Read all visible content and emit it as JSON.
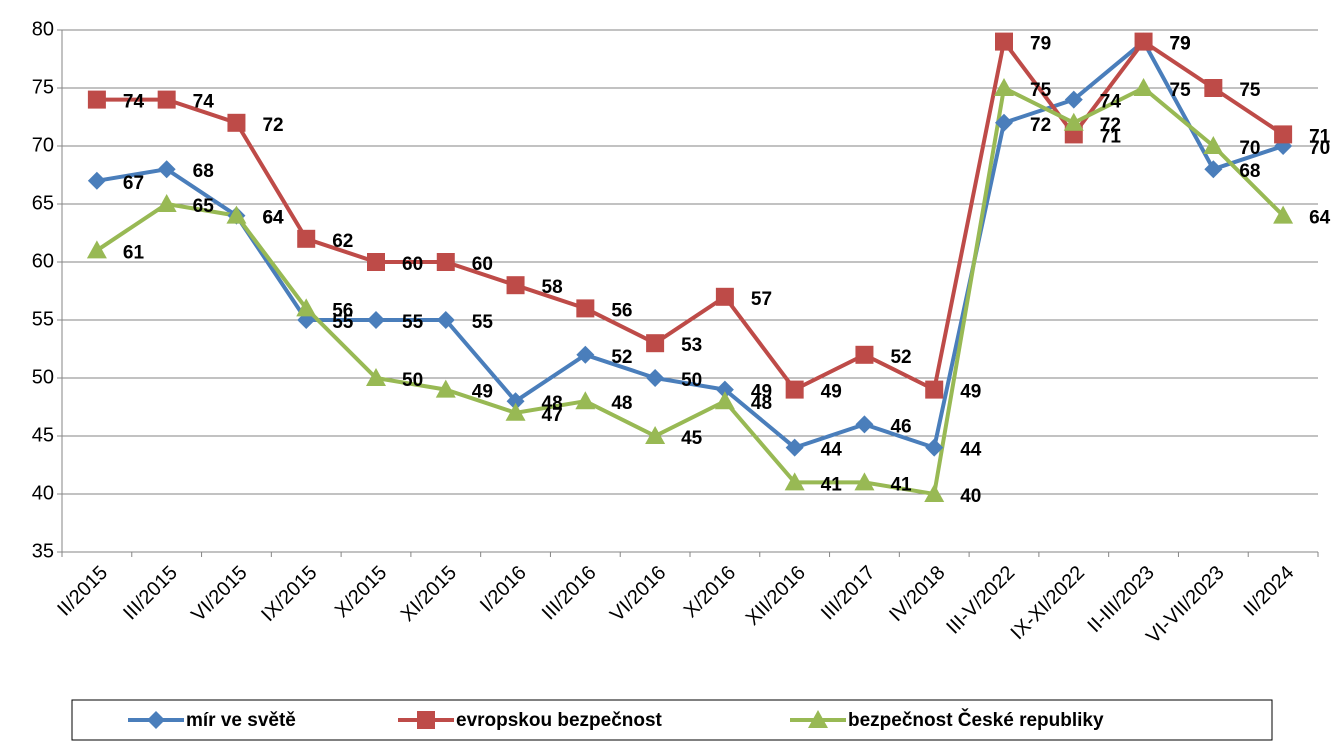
{
  "chart_data": {
    "type": "line",
    "categories": [
      "II/2015",
      "III/2015",
      "VI/2015",
      "IX/2015",
      "X/2015",
      "XI/2015",
      "I/2016",
      "III/2016",
      "VI/2016",
      "X/2016",
      "XII/2016",
      "III/2017",
      "IV/2018",
      "III-V/2022",
      "IX-XI/2022",
      "II-III/2023",
      "VI-VII/2023",
      "II/2024"
    ],
    "series": [
      {
        "name": "mír ve světě",
        "color": "#4a7ebb",
        "marker": "diamond",
        "values": [
          67,
          68,
          64,
          55,
          55,
          55,
          48,
          52,
          50,
          49,
          44,
          46,
          44,
          72,
          74,
          79,
          68,
          70
        ]
      },
      {
        "name": "evropskou bezpečnost",
        "color": "#be4b48",
        "marker": "square",
        "values": [
          74,
          74,
          72,
          62,
          60,
          60,
          58,
          56,
          53,
          57,
          49,
          52,
          49,
          79,
          71,
          79,
          75,
          71
        ]
      },
      {
        "name": "bezpečnost České republiky",
        "color": "#98b954",
        "marker": "triangle",
        "values": [
          61,
          65,
          64,
          56,
          50,
          49,
          47,
          48,
          45,
          48,
          41,
          41,
          40,
          75,
          72,
          75,
          70,
          64
        ]
      }
    ],
    "ylim": [
      35,
      80
    ],
    "yticks": [
      35,
      40,
      45,
      50,
      55,
      60,
      65,
      70,
      75,
      80
    ],
    "grid": true,
    "legend": "bottom"
  }
}
